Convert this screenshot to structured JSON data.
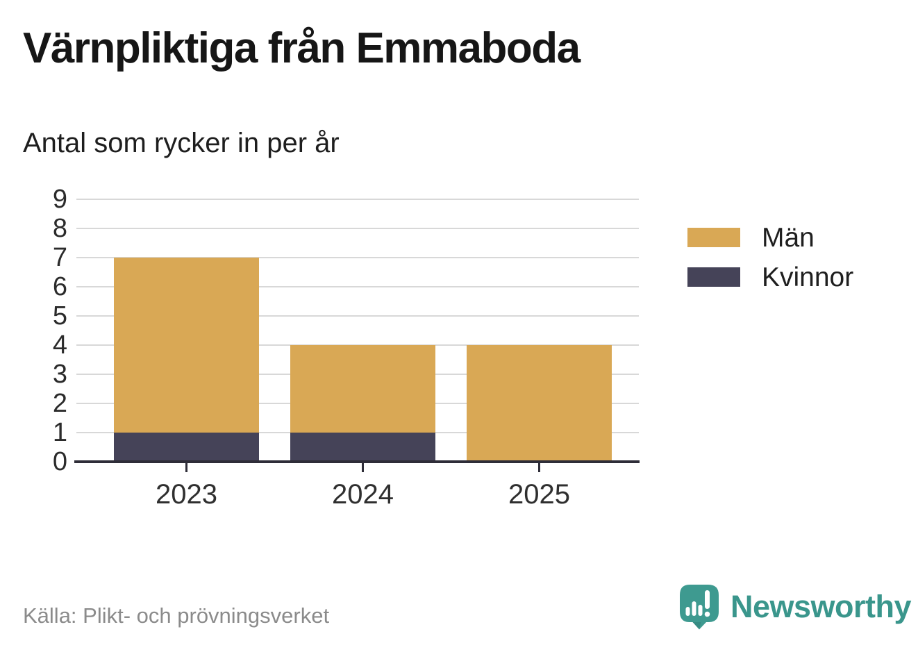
{
  "header": {
    "title": "Värnpliktiga från Emmaboda",
    "subtitle": "Antal som rycker in per år"
  },
  "chart_data": {
    "type": "bar",
    "stacked": true,
    "title": "Värnpliktiga från Emmaboda",
    "subtitle": "Antal som rycker in per år",
    "categories": [
      "2023",
      "2024",
      "2025"
    ],
    "series": [
      {
        "name": "Kvinnor",
        "color": "#454358",
        "values": [
          1,
          1,
          0
        ]
      },
      {
        "name": "Män",
        "color": "#d9a855",
        "values": [
          6,
          3,
          4
        ]
      }
    ],
    "totals": [
      7,
      4,
      4
    ],
    "xlabel": "",
    "ylabel": "",
    "ylim": [
      0,
      9
    ],
    "y_ticks": [
      "0",
      "1",
      "2",
      "3",
      "4",
      "5",
      "6",
      "7",
      "8",
      "9"
    ],
    "grid": "horizontal",
    "gridline_color": "#d8d8d8",
    "axis_color": "#2e2d38",
    "legend_position": "right"
  },
  "legend": {
    "items": [
      {
        "label": "Män",
        "color": "#d9a855"
      },
      {
        "label": "Kvinnor",
        "color": "#454358"
      }
    ]
  },
  "footer": {
    "source": "Källa: Plikt- och prövningsverket",
    "brand": "Newsworthy",
    "brand_color": "#3a968c"
  }
}
